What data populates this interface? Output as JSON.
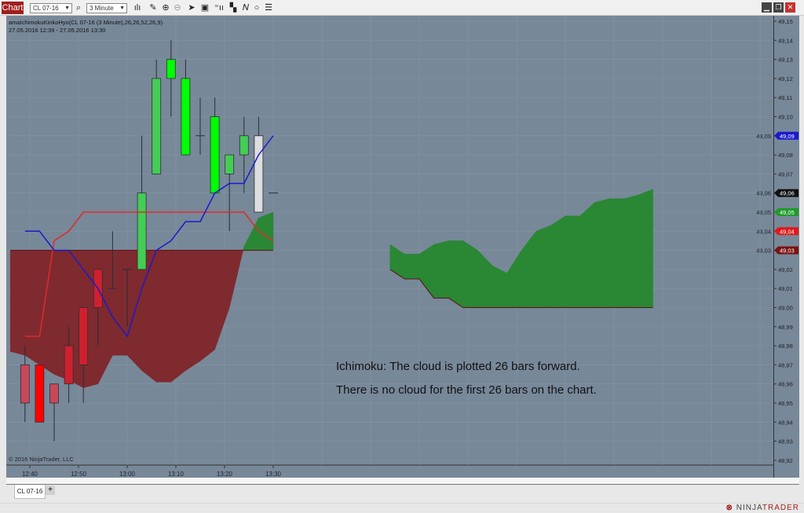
{
  "toolbar": {
    "chart_label": "Chart",
    "instrument": "CL 07-16",
    "interval": "3 Minute",
    "icons": [
      "search-icon",
      "bar-type-icon",
      "pencil-icon",
      "zoom-in-icon",
      "zoom-out-icon",
      "pointer-icon",
      "properties-icon",
      "data-box-icon",
      "drawing-tools-icon",
      "indicators-icon",
      "strategies-icon",
      "list-icon"
    ],
    "window_icons": [
      "minimize-icon",
      "restore-icon",
      "close-icon"
    ]
  },
  "chart": {
    "indicator_label": "amaIchimokuKinkoHyo(CL 07-16 (3 Minute),26,26,52,26,9)",
    "date_range": "27.05.2016 12:39 - 27.05.2016 13:30",
    "copyright": "© 2016 NinjaTrader, LLC",
    "annotation_1": "Ichimoku: The cloud is plotted 26 bars forward.",
    "annotation_2": "There is no cloud for the first 26 bars on the chart.",
    "colors": {
      "background": "#778899",
      "grid": "#8794a3",
      "bear_cloud": "#7f2a2f",
      "bull_cloud": "#2a8734",
      "tenkan": "#1a1acc",
      "kijun": "#e02a2a"
    }
  },
  "chart_data": {
    "type": "candlestick",
    "y_range": [
      48.915,
      49.155
    ],
    "y_ticks": [
      "49,15",
      "49,14",
      "49,13",
      "49,12",
      "49,11",
      "49,10",
      "49,09",
      "49,08",
      "49,07",
      "49,06",
      "49,05",
      "49,04",
      "49,03",
      "49,02",
      "49,01",
      "49,00",
      "48,99",
      "48,98",
      "48,97",
      "48,96",
      "48,95",
      "48,94",
      "48,93",
      "48,92"
    ],
    "x_ticks": [
      "12:40",
      "12:50",
      "13:00",
      "13:10",
      "13:20",
      "13:30"
    ],
    "bar_interval_minutes": 3,
    "bars": [
      {
        "time": "12:39",
        "o": 48.97,
        "h": 48.98,
        "l": 48.94,
        "c": 48.95,
        "color": "#c8485a"
      },
      {
        "time": "12:42",
        "o": 48.97,
        "h": 48.97,
        "l": 48.94,
        "c": 48.94,
        "color": "#ff0000"
      },
      {
        "time": "12:45",
        "o": 48.96,
        "h": 48.96,
        "l": 48.93,
        "c": 48.95,
        "color": "#c8485a"
      },
      {
        "time": "12:48",
        "o": 48.96,
        "h": 48.99,
        "l": 48.95,
        "c": 48.98,
        "color": "#d0202e"
      },
      {
        "time": "12:51",
        "o": 48.97,
        "h": 49.0,
        "l": 48.95,
        "c": 49.0,
        "color": "#d0202e"
      },
      {
        "time": "12:54",
        "o": 49.0,
        "h": 49.02,
        "l": 48.98,
        "c": 49.02,
        "color": "#d0202e"
      },
      {
        "time": "12:57",
        "o": 49.01,
        "h": 49.04,
        "l": 49.01,
        "c": 49.01,
        "color": "#333333"
      },
      {
        "time": "13:00",
        "o": 49.02,
        "h": 49.02,
        "l": 48.99,
        "c": 49.02,
        "color": "#333333"
      },
      {
        "time": "13:03",
        "o": 49.02,
        "h": 49.09,
        "l": 49.02,
        "c": 49.06,
        "color": "#44cc55"
      },
      {
        "time": "13:06",
        "o": 49.07,
        "h": 49.13,
        "l": 49.07,
        "c": 49.12,
        "color": "#44cc55"
      },
      {
        "time": "13:09",
        "o": 49.12,
        "h": 49.14,
        "l": 49.1,
        "c": 49.13,
        "color": "#00ff00"
      },
      {
        "time": "13:12",
        "o": 49.12,
        "h": 49.13,
        "l": 49.08,
        "c": 49.08,
        "color": "#00ff00"
      },
      {
        "time": "13:15",
        "o": 49.09,
        "h": 49.11,
        "l": 49.08,
        "c": 49.09,
        "color": "#333333"
      },
      {
        "time": "13:18",
        "o": 49.1,
        "h": 49.11,
        "l": 49.06,
        "c": 49.06,
        "color": "#00ff00"
      },
      {
        "time": "13:21",
        "o": 49.07,
        "h": 49.08,
        "l": 49.04,
        "c": 49.08,
        "color": "#44cc55"
      },
      {
        "time": "13:24",
        "o": 49.08,
        "h": 49.1,
        "l": 49.06,
        "c": 49.09,
        "color": "#44cc55"
      },
      {
        "time": "13:27",
        "o": 49.05,
        "h": 49.1,
        "l": 49.05,
        "c": 49.09,
        "color": "#dddddd"
      },
      {
        "time": "13:30",
        "o": 49.06,
        "h": 49.06,
        "l": 49.06,
        "c": 49.06,
        "color": "#333333"
      }
    ],
    "tenkan": [
      49.04,
      49.04,
      49.03,
      49.03,
      49.02,
      49.01,
      48.995,
      48.985,
      49.01,
      49.03,
      49.035,
      49.045,
      49.045,
      49.06,
      49.065,
      49.065,
      49.08,
      49.09
    ],
    "kijun": [
      48.985,
      48.985,
      49.035,
      49.04,
      49.05,
      49.05,
      49.05,
      49.05,
      49.05,
      49.05,
      49.05,
      49.05,
      49.05,
      49.05,
      49.05,
      49.05,
      49.04,
      49.035
    ],
    "cloud_past": {
      "start": "12:36",
      "span_a": [
        48.977,
        48.975,
        48.97,
        48.965,
        48.962,
        48.958,
        48.96,
        48.975,
        48.975,
        48.967,
        48.961,
        48.961,
        48.967,
        48.972,
        48.978,
        49.0,
        49.032,
        49.047,
        49.05
      ],
      "span_b": [
        49.03,
        49.03,
        49.03,
        49.03,
        49.03,
        49.03,
        49.03,
        49.03,
        49.03,
        49.03,
        49.03,
        49.03,
        49.03,
        49.03,
        49.03,
        49.03,
        49.03,
        49.03,
        49.03
      ]
    },
    "cloud_future": {
      "start": "13:54",
      "span_a": [
        49.033,
        49.028,
        49.028,
        49.033,
        49.035,
        49.035,
        49.03,
        49.022,
        49.018,
        49.03,
        49.04,
        49.043,
        49.048,
        49.048,
        49.055,
        49.057,
        49.057,
        49.059,
        49.062
      ],
      "span_b": [
        49.02,
        49.015,
        49.015,
        49.005,
        49.005,
        49.0,
        49.0,
        49.0,
        49.0,
        49.0,
        49.0,
        49.0,
        49.0,
        49.0,
        49.0,
        49.0,
        49.0,
        49.0,
        49.0
      ]
    },
    "price_markers": [
      {
        "label": "49,09",
        "value": 49.09,
        "color": "#1a1acc"
      },
      {
        "label": "49,06",
        "value": 49.06,
        "color": "#111111"
      },
      {
        "label": "49,05",
        "value": 49.05,
        "color": "#1f9a2a"
      },
      {
        "label": "49,04",
        "value": 49.04,
        "color": "#e01818"
      },
      {
        "label": "49,03",
        "value": 49.03,
        "color": "#7a1212"
      }
    ]
  },
  "tabs": {
    "active": "CL 07-16",
    "add": "+"
  },
  "footer": {
    "logo": "NINJATRADER"
  }
}
